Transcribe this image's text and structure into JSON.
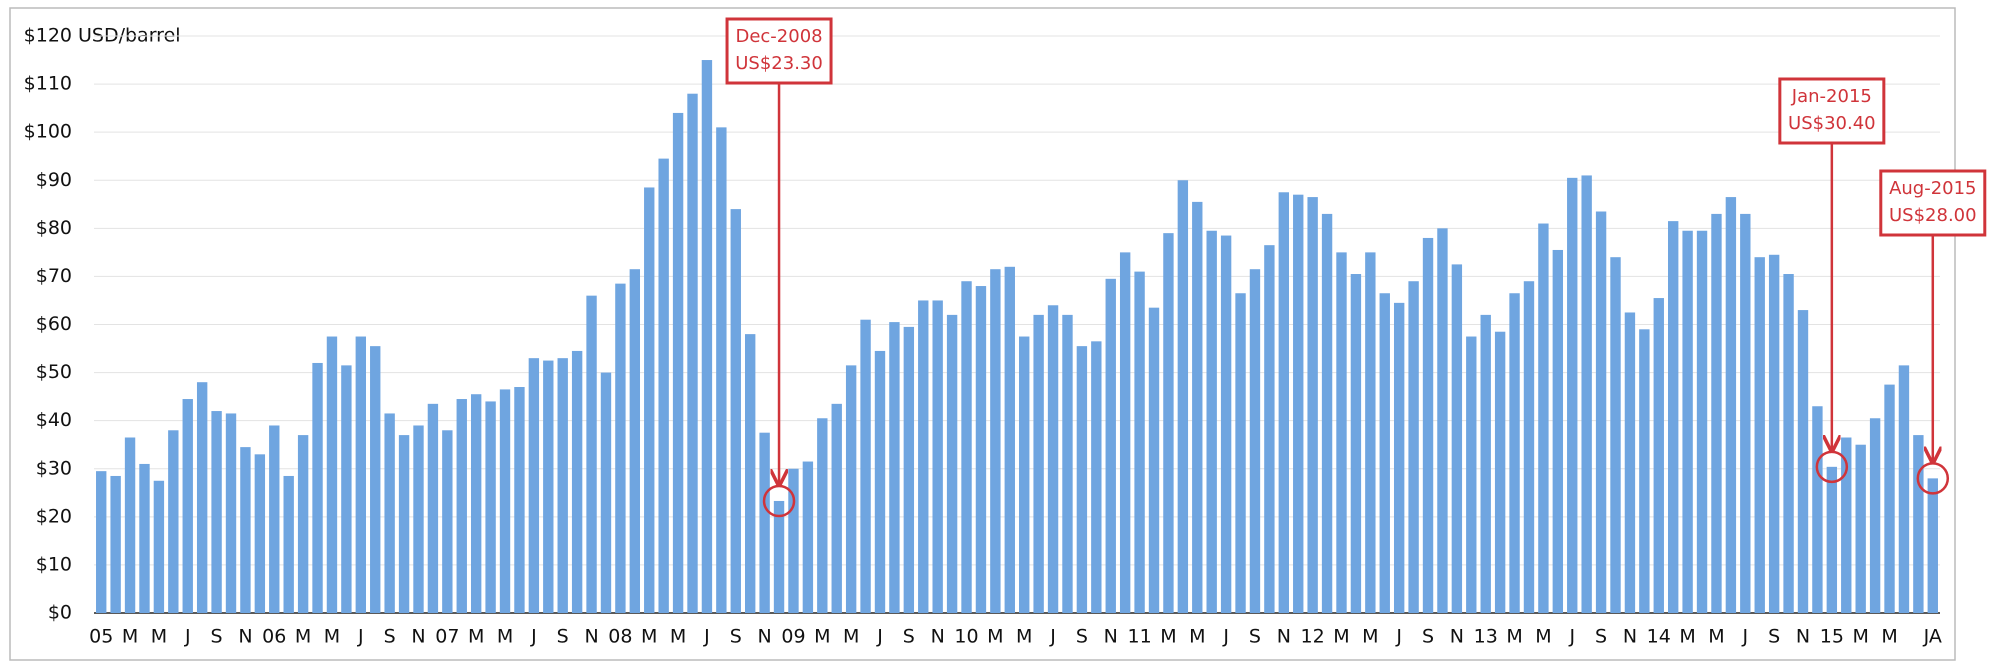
{
  "chart_data": {
    "type": "bar",
    "y_label": "USD/barrel",
    "color": "#6fa5e0",
    "grid": true,
    "ylim": [
      0,
      120
    ],
    "yticks": [
      {
        "value": 0,
        "label": "$0"
      },
      {
        "value": 10,
        "label": "$10"
      },
      {
        "value": 20,
        "label": "$20"
      },
      {
        "value": 30,
        "label": "$30"
      },
      {
        "value": 40,
        "label": "$40"
      },
      {
        "value": 50,
        "label": "$50"
      },
      {
        "value": 60,
        "label": "$60"
      },
      {
        "value": 70,
        "label": "$70"
      },
      {
        "value": 80,
        "label": "$80"
      },
      {
        "value": 90,
        "label": "$90"
      },
      {
        "value": 100,
        "label": "$100"
      },
      {
        "value": 110,
        "label": "$110"
      },
      {
        "value": 120,
        "label": "$120"
      }
    ],
    "categories": [
      "05",
      null,
      "M",
      null,
      "M",
      null,
      "J",
      null,
      "S",
      null,
      "N",
      null,
      "06",
      null,
      "M",
      null,
      "M",
      null,
      "J",
      null,
      "S",
      null,
      "N",
      null,
      "07",
      null,
      "M",
      null,
      "M",
      null,
      "J",
      null,
      "S",
      null,
      "N",
      null,
      "08",
      null,
      "M",
      null,
      "M",
      null,
      "J",
      null,
      "S",
      null,
      "N",
      null,
      "09",
      null,
      "M",
      null,
      "M",
      null,
      "J",
      null,
      "S",
      null,
      "N",
      null,
      "10",
      null,
      "M",
      null,
      "M",
      null,
      "J",
      null,
      "S",
      null,
      "N",
      null,
      "11",
      null,
      "M",
      null,
      "M",
      null,
      "J",
      null,
      "S",
      null,
      "N",
      null,
      "12",
      null,
      "M",
      null,
      "M",
      null,
      "J",
      null,
      "S",
      null,
      "N",
      null,
      "13",
      null,
      "M",
      null,
      "M",
      null,
      "J",
      null,
      "S",
      null,
      "N",
      null,
      "14",
      null,
      "M",
      null,
      "M",
      null,
      "J",
      null,
      "S",
      null,
      "N",
      null,
      "15",
      null,
      "M",
      null,
      "M",
      null,
      null,
      "JA"
    ],
    "values": [
      29.5,
      28.5,
      36.5,
      31,
      27.5,
      38,
      44.5,
      48,
      42,
      41.5,
      34.5,
      33,
      39,
      28.5,
      37,
      52,
      57.5,
      51.5,
      57.5,
      55.5,
      41.5,
      37,
      39,
      43.5,
      38,
      44.5,
      45.5,
      44,
      46.5,
      47,
      53,
      52.5,
      53,
      54.5,
      66,
      50,
      68.5,
      71.5,
      88.5,
      94.5,
      104,
      108,
      115,
      101,
      84,
      58,
      37.5,
      23.3,
      30,
      31.5,
      40.5,
      43.5,
      51.5,
      61,
      54.5,
      60.5,
      59.5,
      65,
      65,
      62,
      69,
      68,
      71.5,
      72,
      57.5,
      62,
      64,
      62,
      55.5,
      56.5,
      69.5,
      75,
      71,
      63.5,
      79,
      90,
      85.5,
      79.5,
      78.5,
      66.5,
      71.5,
      76.5,
      87.5,
      87,
      86.5,
      83,
      75,
      70.5,
      75,
      66.5,
      64.5,
      69,
      78,
      80,
      72.5,
      57.5,
      62,
      58.5,
      66.5,
      69,
      81,
      75.5,
      90.5,
      91,
      83.5,
      74,
      62.5,
      59,
      65.5,
      81.5,
      79.5,
      79.5,
      83,
      86.5,
      83,
      74,
      74.5,
      70.5,
      63,
      43,
      30.4,
      36.5,
      35,
      40.5,
      47.5,
      51.5,
      37,
      28
    ],
    "annotations": [
      {
        "lines": [
          "Dec-2008",
          "US$23.30"
        ]
      },
      {
        "lines": [
          "Jan-2015",
          "US$30.40"
        ]
      },
      {
        "lines": [
          "Aug-2015",
          "US$28.00"
        ]
      }
    ]
  }
}
